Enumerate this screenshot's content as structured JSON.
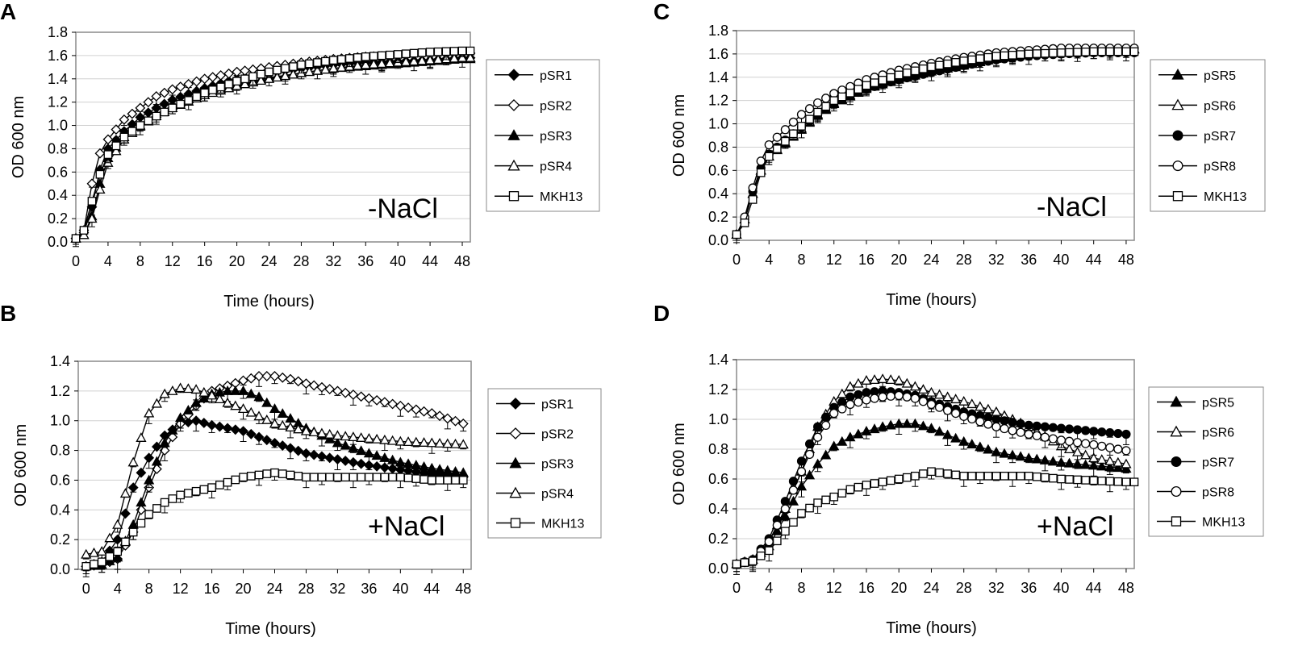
{
  "figure": {
    "type": "multi-panel line chart",
    "panel_count": 4
  },
  "chart_data": [
    {
      "id": "A",
      "panel_label": "A",
      "type": "line",
      "condition": "-NaCl",
      "xlabel": "Time (hours)",
      "ylabel": "OD 600 nm",
      "xlim": [
        0,
        49
      ],
      "ylim": [
        0,
        1.8
      ],
      "xticks": [
        0,
        4,
        8,
        12,
        16,
        20,
        24,
        28,
        32,
        36,
        40,
        44,
        48
      ],
      "yticks": [
        0.0,
        0.2,
        0.4,
        0.6,
        0.8,
        1.0,
        1.2,
        1.4,
        1.6,
        1.8
      ],
      "ytick_labels": [
        "0.0",
        "0.2",
        "0.4",
        "0.6",
        "0.8",
        "1.0",
        "1.2",
        "1.4",
        "1.6",
        "1.8"
      ],
      "grid": "horizontal",
      "error_bars": true,
      "legend_position": "right",
      "series": [
        {
          "name": "pSR1",
          "marker": "diamond",
          "fill": "filled",
          "x": [
            0,
            1,
            2,
            3,
            4,
            6,
            8,
            10,
            12,
            16,
            20,
            24,
            28,
            32,
            36,
            40,
            44,
            48,
            49
          ],
          "values": [
            0.03,
            0.08,
            0.3,
            0.62,
            0.8,
            0.95,
            1.07,
            1.15,
            1.22,
            1.32,
            1.4,
            1.45,
            1.49,
            1.52,
            1.54,
            1.55,
            1.56,
            1.58,
            1.58
          ]
        },
        {
          "name": "pSR2",
          "marker": "diamond",
          "fill": "open",
          "x": [
            0,
            1,
            2,
            3,
            4,
            6,
            8,
            10,
            12,
            16,
            20,
            24,
            28,
            32,
            36,
            40,
            44,
            48,
            49
          ],
          "values": [
            0.03,
            0.1,
            0.5,
            0.76,
            0.88,
            1.05,
            1.15,
            1.25,
            1.31,
            1.4,
            1.46,
            1.5,
            1.54,
            1.57,
            1.59,
            1.6,
            1.61,
            1.62,
            1.62
          ]
        },
        {
          "name": "pSR3",
          "marker": "triangle",
          "fill": "filled",
          "x": [
            0,
            1,
            2,
            3,
            4,
            6,
            8,
            10,
            12,
            16,
            20,
            24,
            28,
            32,
            36,
            40,
            44,
            48,
            49
          ],
          "values": [
            0.03,
            0.06,
            0.22,
            0.5,
            0.72,
            0.9,
            1.0,
            1.1,
            1.17,
            1.28,
            1.35,
            1.41,
            1.45,
            1.49,
            1.51,
            1.53,
            1.55,
            1.57,
            1.57
          ]
        },
        {
          "name": "pSR4",
          "marker": "triangle",
          "fill": "open",
          "x": [
            0,
            1,
            2,
            3,
            4,
            6,
            8,
            10,
            12,
            16,
            20,
            24,
            28,
            32,
            36,
            40,
            44,
            48,
            49
          ],
          "values": [
            0.03,
            0.06,
            0.2,
            0.45,
            0.68,
            0.88,
            0.99,
            1.08,
            1.15,
            1.26,
            1.34,
            1.4,
            1.45,
            1.49,
            1.52,
            1.54,
            1.56,
            1.58,
            1.58
          ]
        },
        {
          "name": "MKH13",
          "marker": "square",
          "fill": "open",
          "x": [
            0,
            1,
            2,
            3,
            4,
            6,
            8,
            10,
            12,
            16,
            20,
            24,
            28,
            32,
            36,
            40,
            44,
            48,
            49
          ],
          "values": [
            0.03,
            0.1,
            0.35,
            0.58,
            0.75,
            0.9,
            1.0,
            1.08,
            1.15,
            1.28,
            1.38,
            1.46,
            1.52,
            1.56,
            1.59,
            1.61,
            1.63,
            1.64,
            1.64
          ]
        }
      ]
    },
    {
      "id": "B",
      "panel_label": "B",
      "type": "line",
      "condition": "+NaCl",
      "xlabel": "Time (hours)",
      "ylabel": "OD 600 nm",
      "xlim": [
        -1,
        49
      ],
      "ylim": [
        0,
        1.4
      ],
      "xticks": [
        0,
        4,
        8,
        12,
        16,
        20,
        24,
        28,
        32,
        36,
        40,
        44,
        48
      ],
      "yticks": [
        0.0,
        0.2,
        0.4,
        0.6,
        0.8,
        1.0,
        1.2,
        1.4
      ],
      "ytick_labels": [
        "0.0",
        "0.2",
        "0.4",
        "0.6",
        "0.8",
        "1.0",
        "1.2",
        "1.4"
      ],
      "grid": "horizontal",
      "error_bars": true,
      "legend_position": "right",
      "series": [
        {
          "name": "pSR1",
          "marker": "diamond",
          "fill": "filled",
          "x": [
            0,
            2,
            4,
            6,
            8,
            10,
            12,
            14,
            16,
            20,
            24,
            28,
            32,
            36,
            40,
            44,
            48
          ],
          "values": [
            0.02,
            0.05,
            0.2,
            0.55,
            0.75,
            0.9,
            0.98,
            1.0,
            0.97,
            0.93,
            0.85,
            0.78,
            0.74,
            0.7,
            0.67,
            0.64,
            0.62
          ]
        },
        {
          "name": "pSR2",
          "marker": "diamond",
          "fill": "open",
          "x": [
            0,
            2,
            4,
            6,
            8,
            10,
            12,
            14,
            16,
            20,
            22,
            24,
            26,
            28,
            32,
            36,
            40,
            44,
            48
          ],
          "values": [
            0.02,
            0.03,
            0.07,
            0.25,
            0.55,
            0.8,
            0.98,
            1.1,
            1.2,
            1.27,
            1.3,
            1.3,
            1.28,
            1.25,
            1.2,
            1.15,
            1.1,
            1.05,
            0.98
          ]
        },
        {
          "name": "pSR3",
          "marker": "triangle",
          "fill": "filled",
          "x": [
            0,
            2,
            4,
            6,
            8,
            10,
            12,
            14,
            16,
            18,
            20,
            22,
            24,
            28,
            32,
            36,
            40,
            44,
            48
          ],
          "values": [
            0.02,
            0.03,
            0.08,
            0.3,
            0.6,
            0.85,
            1.02,
            1.12,
            1.18,
            1.2,
            1.2,
            1.16,
            1.08,
            0.95,
            0.85,
            0.78,
            0.72,
            0.68,
            0.65
          ]
        },
        {
          "name": "pSR4",
          "marker": "triangle",
          "fill": "open",
          "x": [
            0,
            2,
            4,
            6,
            8,
            10,
            12,
            14,
            16,
            18,
            20,
            24,
            28,
            32,
            36,
            40,
            44,
            48
          ],
          "values": [
            0.1,
            0.12,
            0.3,
            0.72,
            1.05,
            1.18,
            1.22,
            1.21,
            1.17,
            1.12,
            1.08,
            0.98,
            0.93,
            0.9,
            0.88,
            0.86,
            0.85,
            0.84
          ]
        },
        {
          "name": "MKH13",
          "marker": "square",
          "fill": "open",
          "x": [
            0,
            2,
            4,
            6,
            8,
            10,
            12,
            16,
            20,
            24,
            28,
            32,
            36,
            40,
            44,
            48
          ],
          "values": [
            0.02,
            0.05,
            0.12,
            0.25,
            0.37,
            0.45,
            0.5,
            0.55,
            0.62,
            0.65,
            0.62,
            0.62,
            0.62,
            0.62,
            0.6,
            0.6
          ]
        }
      ]
    },
    {
      "id": "C",
      "panel_label": "C",
      "type": "line",
      "condition": "-NaCl",
      "xlabel": "Time (hours)",
      "ylabel": "OD 600 nm",
      "xlim": [
        0,
        49
      ],
      "ylim": [
        0,
        1.8
      ],
      "xticks": [
        0,
        4,
        8,
        12,
        16,
        20,
        24,
        28,
        32,
        36,
        40,
        44,
        48
      ],
      "yticks": [
        0.0,
        0.2,
        0.4,
        0.6,
        0.8,
        1.0,
        1.2,
        1.4,
        1.6,
        1.8
      ],
      "ytick_labels": [
        "0.0",
        "0.2",
        "0.4",
        "0.6",
        "0.8",
        "1.0",
        "1.2",
        "1.4",
        "1.6",
        "1.8"
      ],
      "grid": "horizontal",
      "error_bars": true,
      "legend_position": "right",
      "series": [
        {
          "name": "pSR5",
          "marker": "triangle",
          "fill": "filled",
          "x": [
            0,
            1,
            2,
            3,
            4,
            6,
            8,
            10,
            12,
            16,
            20,
            24,
            28,
            32,
            36,
            40,
            44,
            48,
            49
          ],
          "values": [
            0.05,
            0.18,
            0.4,
            0.6,
            0.72,
            0.83,
            0.95,
            1.07,
            1.17,
            1.3,
            1.38,
            1.45,
            1.5,
            1.56,
            1.6,
            1.62,
            1.63,
            1.64,
            1.64
          ]
        },
        {
          "name": "pSR6",
          "marker": "triangle",
          "fill": "open",
          "x": [
            0,
            1,
            2,
            3,
            4,
            6,
            8,
            10,
            12,
            16,
            20,
            24,
            28,
            32,
            36,
            40,
            44,
            48,
            49
          ],
          "values": [
            0.05,
            0.18,
            0.4,
            0.6,
            0.72,
            0.84,
            0.96,
            1.08,
            1.18,
            1.31,
            1.39,
            1.46,
            1.51,
            1.56,
            1.6,
            1.62,
            1.63,
            1.64,
            1.64
          ]
        },
        {
          "name": "pSR7",
          "marker": "circle",
          "fill": "filled",
          "x": [
            0,
            1,
            2,
            3,
            4,
            6,
            8,
            10,
            12,
            16,
            20,
            24,
            28,
            32,
            36,
            40,
            44,
            48,
            49
          ],
          "values": [
            0.05,
            0.18,
            0.42,
            0.62,
            0.74,
            0.86,
            0.97,
            1.08,
            1.18,
            1.3,
            1.38,
            1.44,
            1.5,
            1.55,
            1.58,
            1.6,
            1.61,
            1.61,
            1.61
          ]
        },
        {
          "name": "pSR8",
          "marker": "circle",
          "fill": "open",
          "x": [
            0,
            1,
            2,
            3,
            4,
            6,
            8,
            10,
            12,
            16,
            20,
            24,
            28,
            32,
            36,
            40,
            44,
            48,
            49
          ],
          "values": [
            0.05,
            0.2,
            0.45,
            0.68,
            0.82,
            0.95,
            1.08,
            1.18,
            1.26,
            1.38,
            1.46,
            1.52,
            1.57,
            1.61,
            1.63,
            1.65,
            1.65,
            1.65,
            1.65
          ]
        },
        {
          "name": "MKH13",
          "marker": "square",
          "fill": "open",
          "x": [
            0,
            1,
            2,
            3,
            4,
            6,
            8,
            10,
            12,
            16,
            20,
            24,
            28,
            32,
            36,
            40,
            44,
            48,
            49
          ],
          "values": [
            0.05,
            0.15,
            0.35,
            0.58,
            0.72,
            0.85,
            0.98,
            1.1,
            1.2,
            1.33,
            1.42,
            1.49,
            1.54,
            1.58,
            1.6,
            1.61,
            1.62,
            1.62,
            1.62
          ]
        }
      ]
    },
    {
      "id": "D",
      "panel_label": "D",
      "type": "line",
      "condition": "+NaCl",
      "xlabel": "Time (hours)",
      "ylabel": "OD 600 nm",
      "xlim": [
        0,
        49
      ],
      "ylim": [
        0,
        1.4
      ],
      "xticks": [
        0,
        4,
        8,
        12,
        16,
        20,
        24,
        28,
        32,
        36,
        40,
        44,
        48
      ],
      "yticks": [
        0.0,
        0.2,
        0.4,
        0.6,
        0.8,
        1.0,
        1.2,
        1.4
      ],
      "ytick_labels": [
        "0.0",
        "0.2",
        "0.4",
        "0.6",
        "0.8",
        "1.0",
        "1.2",
        "1.4"
      ],
      "grid": "horizontal",
      "error_bars": true,
      "legend_position": "right",
      "series": [
        {
          "name": "pSR5",
          "marker": "triangle",
          "fill": "filled",
          "x": [
            0,
            2,
            4,
            6,
            8,
            10,
            12,
            14,
            16,
            18,
            20,
            22,
            24,
            28,
            32,
            36,
            40,
            44,
            48
          ],
          "values": [
            0.03,
            0.06,
            0.15,
            0.35,
            0.55,
            0.7,
            0.82,
            0.88,
            0.92,
            0.95,
            0.97,
            0.97,
            0.94,
            0.85,
            0.78,
            0.74,
            0.71,
            0.69,
            0.67
          ]
        },
        {
          "name": "pSR6",
          "marker": "triangle",
          "fill": "open",
          "x": [
            0,
            2,
            4,
            6,
            8,
            10,
            12,
            14,
            16,
            18,
            20,
            22,
            24,
            28,
            32,
            36,
            40,
            44,
            48
          ],
          "values": [
            0.03,
            0.06,
            0.18,
            0.4,
            0.65,
            0.95,
            1.12,
            1.22,
            1.26,
            1.27,
            1.26,
            1.22,
            1.18,
            1.12,
            1.05,
            0.95,
            0.82,
            0.74,
            0.7
          ]
        },
        {
          "name": "pSR7",
          "marker": "circle",
          "fill": "filled",
          "x": [
            0,
            2,
            4,
            6,
            8,
            10,
            12,
            14,
            16,
            18,
            20,
            22,
            24,
            28,
            32,
            36,
            40,
            44,
            48
          ],
          "values": [
            0.03,
            0.06,
            0.2,
            0.45,
            0.72,
            0.95,
            1.08,
            1.15,
            1.18,
            1.19,
            1.18,
            1.16,
            1.12,
            1.05,
            1.0,
            0.96,
            0.94,
            0.92,
            0.9
          ]
        },
        {
          "name": "pSR8",
          "marker": "circle",
          "fill": "open",
          "x": [
            0,
            2,
            4,
            6,
            8,
            10,
            12,
            14,
            16,
            18,
            20,
            22,
            24,
            28,
            32,
            36,
            40,
            44,
            48
          ],
          "values": [
            0.03,
            0.05,
            0.18,
            0.4,
            0.65,
            0.88,
            1.04,
            1.1,
            1.13,
            1.15,
            1.16,
            1.14,
            1.1,
            1.02,
            0.95,
            0.9,
            0.86,
            0.83,
            0.79
          ]
        },
        {
          "name": "MKH13",
          "marker": "square",
          "fill": "open",
          "x": [
            0,
            2,
            4,
            6,
            8,
            10,
            12,
            14,
            16,
            18,
            20,
            22,
            24,
            28,
            32,
            36,
            40,
            44,
            48,
            49
          ],
          "values": [
            0.03,
            0.05,
            0.12,
            0.25,
            0.37,
            0.44,
            0.48,
            0.53,
            0.56,
            0.58,
            0.6,
            0.62,
            0.65,
            0.62,
            0.62,
            0.62,
            0.6,
            0.59,
            0.58,
            0.58
          ]
        }
      ]
    }
  ]
}
